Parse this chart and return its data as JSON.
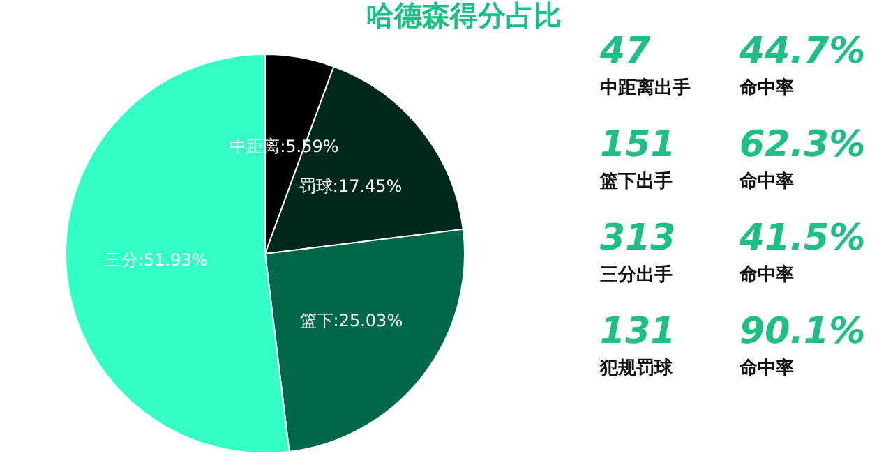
{
  "chart_data": [
    {
      "type": "pie",
      "title": "哈德森得分占比",
      "categories": [
        "中距离",
        "罚球",
        "篮下",
        "三分"
      ],
      "values": [
        5.59,
        17.45,
        25.03,
        51.93
      ],
      "colors": [
        "#000000",
        "#00291c",
        "#006848",
        "#33ffc4"
      ],
      "value_labels": [
        "5.59%",
        "17.45%",
        "25.03%",
        "51.93%"
      ]
    },
    {
      "type": "other",
      "color": "#1dbf84",
      "annotations": [
        "47",
        "44.7%",
        "中距离出手",
        "命中率",
        "151",
        "62.3%",
        "篮下出手",
        "命中率",
        "313",
        "41.5%",
        "三分出手",
        "命中率",
        "131",
        "90.1%",
        "犯规罚球",
        "命中率"
      ]
    }
  ]
}
